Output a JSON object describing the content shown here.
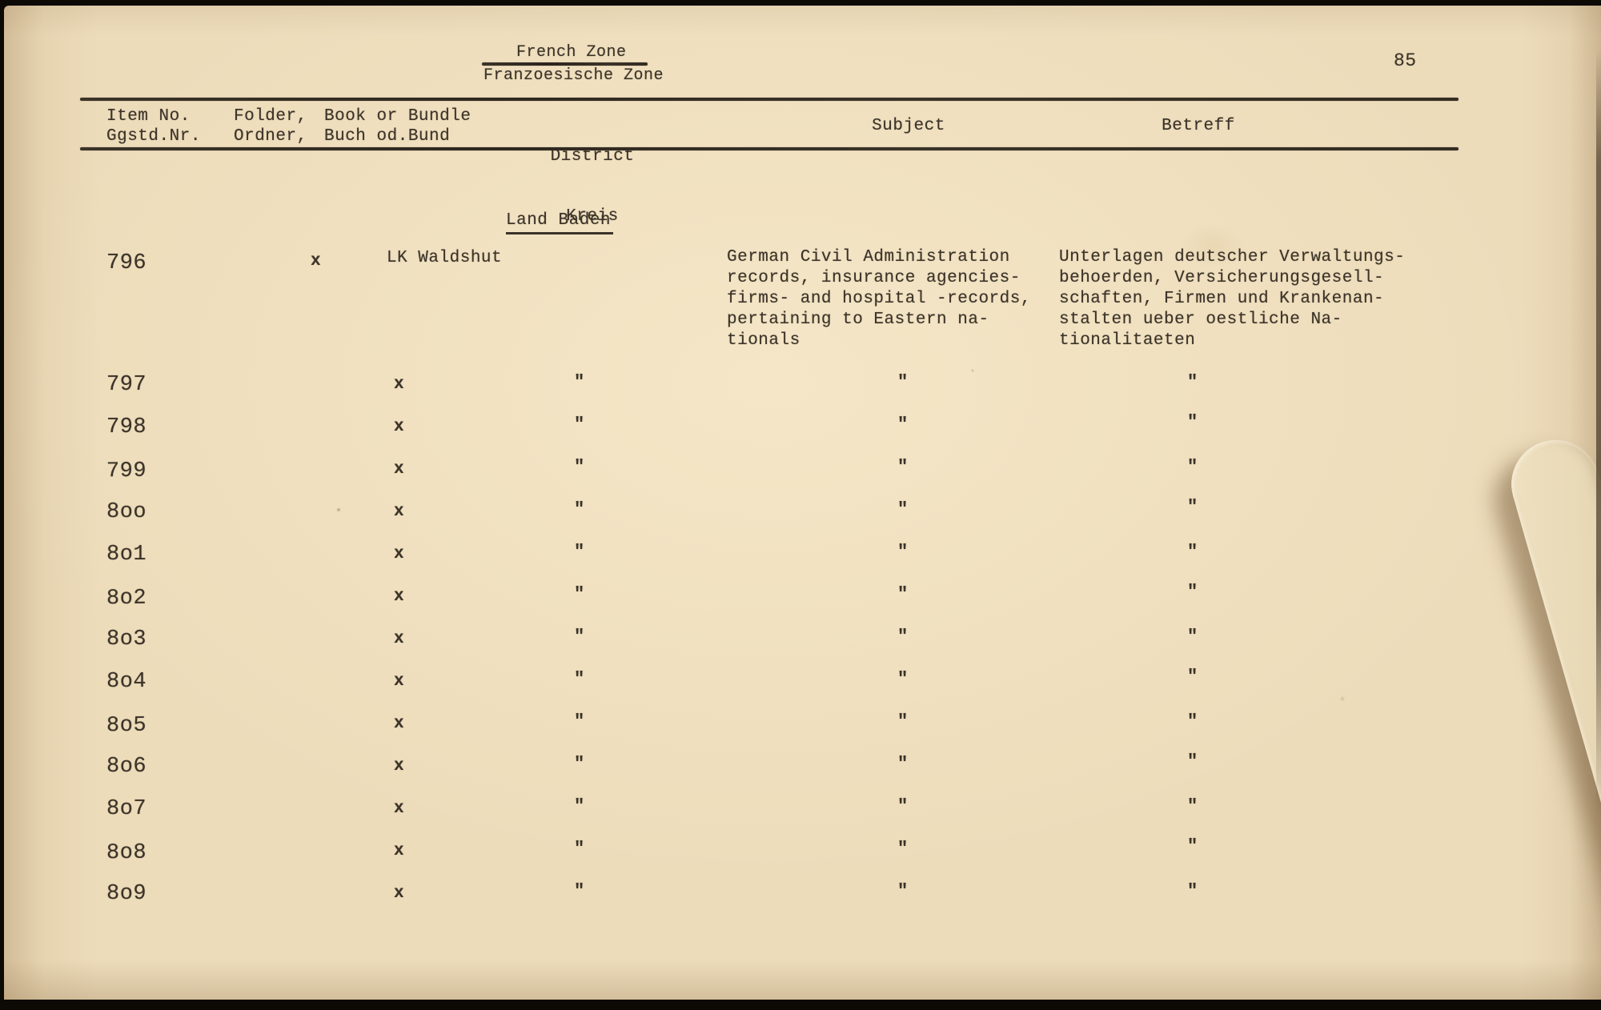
{
  "page": {
    "number": "85",
    "title_en": "French Zone",
    "title_de": "Franzoesische Zone",
    "section_heading": "Land Baden"
  },
  "table": {
    "columns": [
      {
        "line1": "Item No.",
        "line2": "Ggstd.Nr."
      },
      {
        "line1": "Folder,",
        "line2": "Ordner,"
      },
      {
        "line1": "Book or Bundle",
        "line2": "Buch od.Bund"
      },
      {
        "line1": "District",
        "line2": "Kreis"
      },
      {
        "line1": "Subject",
        "line2": ""
      },
      {
        "line1": "Betreff",
        "line2": ""
      }
    ],
    "first_row": {
      "item_no": "796",
      "book_or_bundle": "x",
      "district": "LK Waldshut",
      "subject_lines": [
        "German Civil Administration",
        "records, insurance agencies-",
        "firms- and hospital -records,",
        "pertaining to Eastern na-",
        "tionals"
      ],
      "betreff_lines": [
        "Unterlagen deutscher Verwaltungs-",
        "behoerden, Versicherungsgesell-",
        "schaften, Firmen und Krankenan-",
        "stalten ueber oestliche Na-",
        "tionalitaeten"
      ]
    },
    "ditto_rows": [
      {
        "item_no": "797",
        "book_or_bundle": "x",
        "district": "\"",
        "subject": "\"",
        "betreff": "\""
      },
      {
        "item_no": "798",
        "book_or_bundle": "x",
        "district": "\"",
        "subject": "\"",
        "betreff": "\""
      },
      {
        "item_no": "799",
        "book_or_bundle": "x",
        "district": "\"",
        "subject": "\"",
        "betreff": "\""
      },
      {
        "item_no": "8oo",
        "book_or_bundle": "x",
        "district": "\"",
        "subject": "\"",
        "betreff": "\""
      },
      {
        "item_no": "8o1",
        "book_or_bundle": "x",
        "district": "\"",
        "subject": "\"",
        "betreff": "\""
      },
      {
        "item_no": "8o2",
        "book_or_bundle": "x",
        "district": "\"",
        "subject": "\"",
        "betreff": "\""
      },
      {
        "item_no": "8o3",
        "book_or_bundle": "x",
        "district": "\"",
        "subject": "\"",
        "betreff": "\""
      },
      {
        "item_no": "8o4",
        "book_or_bundle": "x",
        "district": "\"",
        "subject": "\"",
        "betreff": "\""
      },
      {
        "item_no": "8o5",
        "book_or_bundle": "x",
        "district": "\"",
        "subject": "\"",
        "betreff": "\""
      },
      {
        "item_no": "8o6",
        "book_or_bundle": "x",
        "district": "\"",
        "subject": "\"",
        "betreff": "\""
      },
      {
        "item_no": "8o7",
        "book_or_bundle": "x",
        "district": "\"",
        "subject": "\"",
        "betreff": "\""
      },
      {
        "item_no": "8o8",
        "book_or_bundle": "x",
        "district": "\"",
        "subject": "\"",
        "betreff": "\""
      },
      {
        "item_no": "8o9",
        "book_or_bundle": "x",
        "district": "\"",
        "subject": "\"",
        "betreff": "\""
      }
    ],
    "ink_color": "#3b3328",
    "paper_color": "#eddcba"
  }
}
